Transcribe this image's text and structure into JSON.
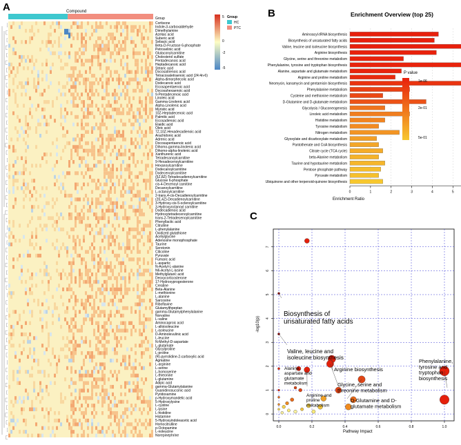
{
  "panel_labels": [
    "A",
    "B",
    "C"
  ],
  "heatmap": {
    "annotation_label": "Compound",
    "column_annotation_name": "Group",
    "legend_group_title": "Group",
    "groups": [
      {
        "name": "HC",
        "color": "#3ec8cf",
        "fraction": 0.41
      },
      {
        "name": "PTC",
        "color": "#f28e7f",
        "fraction": 0.59
      }
    ],
    "color_scale": {
      "ticks": [
        "5",
        "0",
        "-2",
        "-5"
      ],
      "colors": [
        "#d7301f",
        "#fdfdc4",
        "#4b86c5"
      ]
    },
    "metabolites": [
      "Cortisone",
      "Indole-3-carboxaldehyde",
      "Dimethylamine",
      "Azelaic acid",
      "Suberic acid",
      "Sebacic acid",
      "Beta-D-Fructose 6-phosphate",
      "Petroselinic acid",
      "Glutaconylcarnitine",
      "Cholesterol sulfate",
      "Pentadecanoic acid",
      "Heptadecanoic acid",
      "Stearic acid",
      "Docosatrienoic acid",
      "Tetracosatetraenoic acid (24:4n-6)",
      "Alpha-dimorphecolic acid",
      "Dodecanoic acid",
      "Eicosapentaenoic acid",
      "Docosahexaenoic acid",
      "9-Pentadecenoic acid",
      "Linoleic acid",
      "Gamma-Linolenic acid",
      "Alpha-Linolenic acid",
      "Myristic acid",
      "10Z-Heptadecenoic acid",
      "Palmitic acid",
      "Eicosadienoic acid",
      "Elaidic acid",
      "Oleic acid",
      "7Z,10Z-Hexadecadienoic acid",
      "Arachidonic acid",
      "Adrenic acid",
      "Docosapentaenoic acid",
      "Dihomo-gamma-linolenic acid",
      "Dihomo-alpha-linolenic acid",
      "Xanthurenic acid",
      "Tetradecanoylcarnitine",
      "9-Hexadecenoylcarnitine",
      "Hexanoylcarnitine",
      "Dodecanoylcarnitine",
      "Dodecenoylcarnitine",
      "(5Z,8Z)-Tetradecadienoylcarnitine",
      "Glucose 6-phosphate",
      "cis-4-Decenoyl carnitine",
      "Decanoylcarnitine",
      "L-octanoylcarnitine",
      "2-trans,4-cis-Decadienoylcarnitine",
      "(2E,4Z)-Decadienoylcarnitine",
      "3-Hydroxy-cis-5-octenoylcarnitine",
      "3-Hydroxyoctanoyl carnitine",
      "Dodecadienoic acid",
      "Hydroxytetradecenoylcarnitine",
      "trans-2-Tetradecenoylcarnitine",
      "Phenyllactic acid",
      "Citrulline",
      "L-phenylalanine",
      "Oxidized glutathione",
      "Acetylglycine",
      "Adenosine monophosphate",
      "Taurine",
      "Serotonin",
      "Citicoline",
      "Pyruvate",
      "Fumaric acid",
      "L-aspartic",
      "N-Acetyl-L-alanine",
      "N6-Acetyl-L-lysine",
      "Methylglutaric acid",
      "Deoxycorticosterone",
      "17-Hydroxyprogesterone",
      "Creatine",
      "Beta-Alanine",
      "L-methionine",
      "L-alanine",
      "Sarcosine",
      "Riboflavine",
      "Glutamylthpeptan",
      "gamma-Glutamylphenylalanine",
      "Norvaline",
      "L-valine",
      "Aminocaproic acid",
      "L-alloisoleucine",
      "L-isoleucine",
      "D-Aminolevulinic acid",
      "L-leucine",
      "N-Methyl-D-aspartate",
      "L-glutamate",
      "Glycylproline",
      "L-proline",
      "(R)-pyrrolidine-2-carboxylic acid",
      "Agmatine",
      "L-arginine",
      "L-serine",
      "L-homoserine",
      "L-threonine",
      "L-glutamine",
      "Adipic acid",
      "gamma-Glutamylalanine",
      "Guanidinosuccinic acid",
      "Pyridoxamine",
      "p-Hydroxymandelic acid",
      "5-Hydroxylysine",
      "L-cystine",
      "L-lysine",
      "L-histidine",
      "Histamine",
      "5-Hydroxyindoleacetic acid",
      "Homocitrulline",
      "p-Octopamine",
      "L-noleucine",
      "Norepinephrine"
    ]
  },
  "chart_data": [
    {
      "type": "bar",
      "title": "Enrichment Overview (top 25)",
      "xlabel": "Enrichment Ratio",
      "xlim": [
        0,
        7.3
      ],
      "xticks": [
        0,
        1,
        2,
        3,
        4,
        5,
        6,
        7
      ],
      "legend_title": "P value",
      "legend_ticks": [
        "1e-06",
        "2e-01",
        "5e-01"
      ],
      "color_low": "#e8200c",
      "color_high": "#f7c72e",
      "categories": [
        "Aminoacyl-tRNA biosynthesis",
        "Biosynthesis of unsaturated fatty acids",
        "Valine, leucine and isoleucine biosynthesis",
        "Arginine biosynthesis",
        "Glycine, serine and threonine metabolism",
        "Phenylalanine, tyrosine and tryptophan biosynthesis",
        "Alanine, aspartate and glutamate metabolism",
        "Arginine and proline metabolism",
        "Neomycin, kanamycin and gentamicin biosynthesis",
        "Phenylalanine metabolism",
        "Cysteine and methionine metabolism",
        "D-Glutamine and D-glutamate metabolism",
        "Glycolysis / Gluconeogenesis",
        "Linoleic acid metabolism",
        "Histidine metabolism",
        "Tyrosine metabolism",
        "Nitrogen metabolism",
        "Glyoxylate and dicarboxylate metabolism",
        "Pantothenate and CoA biosynthesis",
        "Citrate cycle (TCA cycle)",
        "beta-Alanine metabolism",
        "Taurine and hypotaurine metabolism",
        "Pentose phosphate pathway",
        "Pyruvate metabolism",
        "Ubiquinone and other terpenoid-quinone biosynthesis"
      ],
      "values": [
        4.3,
        4.1,
        7.1,
        4.2,
        2.6,
        7.1,
        2.5,
        2.2,
        7.1,
        2.9,
        1.6,
        3.7,
        1.7,
        2.9,
        1.7,
        1.4,
        2.4,
        1.3,
        1.4,
        1.6,
        1.4,
        1.7,
        1.5,
        1.4,
        1.6
      ],
      "p_values": [
        0.0002,
        0.0001,
        0.0003,
        0.006,
        0.008,
        0.012,
        0.012,
        0.03,
        0.06,
        0.1,
        0.12,
        0.15,
        0.25,
        0.28,
        0.3,
        0.32,
        0.35,
        0.38,
        0.4,
        0.42,
        0.44,
        0.45,
        0.47,
        0.48,
        0.5
      ]
    },
    {
      "type": "scatter",
      "xlabel": "Pathway Impact",
      "ylabel": "-log10(p)",
      "xlim": [
        0,
        1.03
      ],
      "ylim": [
        -0.2,
        7.6
      ],
      "xticks": [
        "0.0",
        "0.2",
        "0.4",
        "0.6",
        "0.8",
        "1.0"
      ],
      "yticks": [
        "0",
        "1",
        "2",
        "3",
        "4",
        "5",
        "6",
        "7"
      ],
      "points": [
        {
          "x": 0.17,
          "y": 7.25,
          "r": 3.5,
          "c": "#e5200b"
        },
        {
          "x": 0.0,
          "y": 5.05,
          "r": 1.6,
          "c": "#8b0000"
        },
        {
          "x": 0.0,
          "y": 3.35,
          "r": 1.6,
          "c": "#8b0000"
        },
        {
          "x": 0.32,
          "y": 2.3,
          "r": 5.5,
          "c": "#e5200b"
        },
        {
          "x": 0.31,
          "y": 2.1,
          "r": 5.2,
          "c": "#e5200b"
        },
        {
          "x": 0.12,
          "y": 1.9,
          "r": 3.2,
          "c": "#e5200b"
        },
        {
          "x": 0.17,
          "y": 1.85,
          "r": 4.2,
          "c": "#e5200b"
        },
        {
          "x": 1.0,
          "y": 1.8,
          "r": 7.0,
          "c": "#e5200b"
        },
        {
          "x": 0.5,
          "y": 1.45,
          "r": 5.2,
          "c": "#e04515"
        },
        {
          "x": 0.0,
          "y": 1.9,
          "r": 1.6,
          "c": "#e5200b"
        },
        {
          "x": 0.36,
          "y": 1.0,
          "r": 4.5,
          "c": "#e04515"
        },
        {
          "x": 0.1,
          "y": 1.1,
          "r": 2.0,
          "c": "#e04515"
        },
        {
          "x": 0.13,
          "y": 1.0,
          "r": 2.5,
          "c": "#e04515"
        },
        {
          "x": 0.0,
          "y": 1.0,
          "r": 1.5,
          "c": "#e5200b"
        },
        {
          "x": 1.0,
          "y": 0.6,
          "r": 6.8,
          "c": "#e5200b"
        },
        {
          "x": 0.45,
          "y": 0.6,
          "r": 4.5,
          "c": "#e86a1a"
        },
        {
          "x": 0.42,
          "y": 0.3,
          "r": 4.5,
          "c": "#f08a1e"
        },
        {
          "x": 0.27,
          "y": 0.65,
          "r": 4.0,
          "c": "#f0a128"
        },
        {
          "x": 0.25,
          "y": 0.3,
          "r": 3.5,
          "c": "#f5c53a"
        },
        {
          "x": 0.18,
          "y": 0.35,
          "r": 3.0,
          "c": "#f6d24a"
        },
        {
          "x": 0.08,
          "y": 0.6,
          "r": 2.6,
          "c": "#e86a1a"
        },
        {
          "x": 0.05,
          "y": 0.45,
          "r": 2.4,
          "c": "#f08a1e"
        },
        {
          "x": 0.03,
          "y": 0.3,
          "r": 2.4,
          "c": "#f6d24a"
        },
        {
          "x": 0.06,
          "y": 0.15,
          "r": 2.2,
          "c": "#fbec7a"
        },
        {
          "x": 0.1,
          "y": 0.1,
          "r": 2.4,
          "c": "#fdf3a0"
        },
        {
          "x": 0.14,
          "y": 0.2,
          "r": 2.2,
          "c": "#f5c53a"
        },
        {
          "x": 0.02,
          "y": 0.05,
          "r": 2.0,
          "c": "#fdf3a0"
        },
        {
          "x": 0.21,
          "y": 0.1,
          "r": 2.6,
          "c": "#fbec7a"
        },
        {
          "x": 0.0,
          "y": 0.4,
          "r": 1.5,
          "c": "#f08a1e"
        },
        {
          "x": 0.0,
          "y": 0.7,
          "r": 1.5,
          "c": "#e86a1a"
        },
        {
          "x": 0.0,
          "y": 0.2,
          "r": 1.5,
          "c": "#f6d24a"
        }
      ],
      "annotations": [
        {
          "lines": [
            "Biosynthesis of",
            "unsaturated fatty acids"
          ],
          "size": 10,
          "px": 0.0,
          "py": 5.05
        },
        {
          "lines": [
            "Valine, leucine and",
            "isoleucine biosynthesis"
          ],
          "size": 8,
          "px": 0.0,
          "py": 3.35
        },
        {
          "lines": [
            "Alanine,",
            "aspartate and",
            "glutamate",
            "metabolism"
          ],
          "size": 6.5,
          "px": 0.12,
          "py": 1.9
        },
        {
          "lines": [
            "Arginine and",
            "proline",
            "metabolism"
          ],
          "size": 6.5,
          "px": 0.17,
          "py": 1.85
        },
        {
          "lines": [
            "Arginine biosynthesis"
          ],
          "size": 7.5,
          "px": 0.32,
          "py": 2.3
        },
        {
          "lines": [
            "Glycine, serine and",
            "threonine metabolism"
          ],
          "size": 7.5,
          "px": 0.31,
          "py": 2.1
        },
        {
          "lines": [
            "D-Glutamine and D-",
            "glutamate metabolism"
          ],
          "size": 7.5,
          "px": 0.5,
          "py": 1.45
        },
        {
          "lines": [
            "Phenylalanine,",
            "tyrosine and",
            "tryptophan",
            "biosynthesis"
          ],
          "size": 7.5,
          "px": 1.0,
          "py": 1.8
        }
      ]
    }
  ]
}
